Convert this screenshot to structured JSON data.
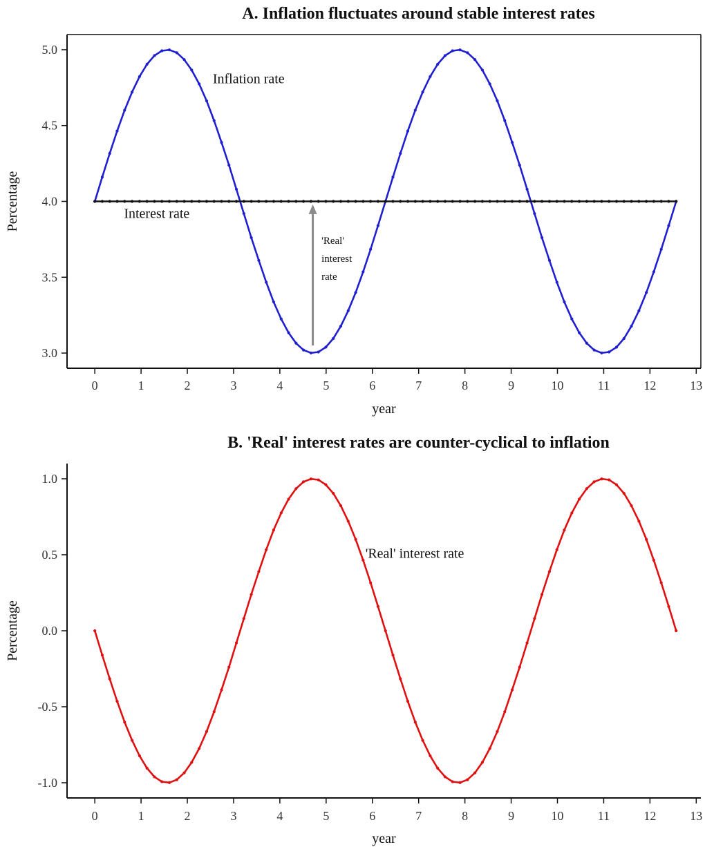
{
  "chart_data": [
    {
      "type": "line",
      "title": "A. Inflation fluctuates around stable interest rates",
      "xlabel": "year",
      "ylabel": "Percentage",
      "xlim": [
        -0.6,
        13.1
      ],
      "ylim": [
        2.9,
        5.1
      ],
      "xticks": [
        0,
        1,
        2,
        3,
        4,
        5,
        6,
        7,
        8,
        9,
        10,
        11,
        12,
        13
      ],
      "yticks": [
        3.0,
        3.5,
        4.0,
        4.5,
        5.0
      ],
      "ytick_labels": [
        "3.0",
        "3.5",
        "4.0",
        "4.5",
        "5.0"
      ],
      "grid": false,
      "series": [
        {
          "name": "Inflation rate",
          "color": "#1f1fd0",
          "marker": "dot",
          "x": [
            0,
            0.161,
            0.322,
            0.483,
            0.644,
            0.806,
            0.967,
            1.128,
            1.289,
            1.45,
            1.611,
            1.772,
            1.933,
            2.094,
            2.255,
            2.417,
            2.578,
            2.739,
            2.9,
            3.061,
            3.222,
            3.383,
            3.544,
            3.705,
            3.866,
            4.028,
            4.189,
            4.35,
            4.511,
            4.672,
            4.833,
            4.994,
            5.155,
            5.316,
            5.477,
            5.639,
            5.8,
            5.961,
            6.122,
            6.283,
            6.444,
            6.605,
            6.766,
            6.927,
            7.088,
            7.25,
            7.411,
            7.572,
            7.733,
            7.894,
            8.055,
            8.216,
            8.377,
            8.538,
            8.7,
            8.861,
            9.022,
            9.183,
            9.344,
            9.505,
            9.666,
            9.827,
            9.988,
            10.149,
            10.311,
            10.472,
            10.633,
            10.794,
            10.955,
            11.116,
            11.277,
            11.438,
            11.599,
            11.761,
            11.922,
            12.083,
            12.244,
            12.405,
            12.566
          ],
          "y": [
            4.0,
            4.16,
            4.316,
            4.464,
            4.601,
            4.721,
            4.823,
            4.904,
            4.961,
            4.993,
            4.999,
            4.98,
            4.935,
            4.866,
            4.775,
            4.663,
            4.533,
            4.389,
            4.239,
            4.08,
            3.92,
            3.761,
            3.611,
            3.467,
            3.337,
            3.225,
            3.134,
            3.065,
            3.02,
            3.001,
            3.007,
            3.039,
            3.096,
            3.177,
            3.279,
            3.399,
            3.536,
            3.684,
            3.84,
            4.0,
            4.16,
            4.316,
            4.464,
            4.601,
            4.721,
            4.823,
            4.904,
            4.961,
            4.993,
            4.999,
            4.98,
            4.935,
            4.866,
            4.775,
            4.663,
            4.533,
            4.389,
            4.239,
            4.08,
            3.92,
            3.761,
            3.611,
            3.467,
            3.337,
            3.225,
            3.134,
            3.065,
            3.02,
            3.001,
            3.007,
            3.039,
            3.096,
            3.177,
            3.279,
            3.399,
            3.536,
            3.684,
            3.84,
            4.0
          ]
        },
        {
          "name": "Interest rate",
          "color": "#111111",
          "marker": "dot",
          "x": [
            0,
            12.566
          ],
          "y": [
            4.0,
            4.0
          ],
          "points": 79
        }
      ],
      "annotations": [
        {
          "text": "Inflation rate",
          "x": 2.55,
          "y": 4.78
        },
        {
          "text": "Interest rate",
          "x": 0.63,
          "y": 3.89
        },
        {
          "text_lines": [
            "'Real'",
            "interest",
            "rate"
          ],
          "x": 4.9,
          "y": 3.72,
          "size": "small"
        }
      ],
      "arrow": {
        "from": [
          4.712,
          3.05
        ],
        "to": [
          4.712,
          3.98
        ],
        "color": "#8a8a8a"
      }
    },
    {
      "type": "line",
      "title": "B. 'Real' interest rates are counter-cyclical to inflation",
      "xlabel": "year",
      "ylabel": "Percentage",
      "xlim": [
        -0.6,
        13.1
      ],
      "ylim": [
        -1.1,
        1.1
      ],
      "xticks": [
        0,
        1,
        2,
        3,
        4,
        5,
        6,
        7,
        8,
        9,
        10,
        11,
        12,
        13
      ],
      "yticks": [
        -1.0,
        -0.5,
        0.0,
        0.5,
        1.0
      ],
      "ytick_labels": [
        "-1.0",
        "-0.5",
        "0.0",
        "0.5",
        "1.0"
      ],
      "grid": false,
      "series": [
        {
          "name": "'Real' interest rate",
          "color": "#e01010",
          "marker": "dot",
          "x": [
            0,
            0.161,
            0.322,
            0.483,
            0.644,
            0.806,
            0.967,
            1.128,
            1.289,
            1.45,
            1.611,
            1.772,
            1.933,
            2.094,
            2.255,
            2.417,
            2.578,
            2.739,
            2.9,
            3.061,
            3.222,
            3.383,
            3.544,
            3.705,
            3.866,
            4.028,
            4.189,
            4.35,
            4.511,
            4.672,
            4.833,
            4.994,
            5.155,
            5.316,
            5.477,
            5.639,
            5.8,
            5.961,
            6.122,
            6.283,
            6.444,
            6.605,
            6.766,
            6.927,
            7.088,
            7.25,
            7.411,
            7.572,
            7.733,
            7.894,
            8.055,
            8.216,
            8.377,
            8.538,
            8.7,
            8.861,
            9.022,
            9.183,
            9.344,
            9.505,
            9.666,
            9.827,
            9.988,
            10.149,
            10.311,
            10.472,
            10.633,
            10.794,
            10.955,
            11.116,
            11.277,
            11.438,
            11.599,
            11.761,
            11.922,
            12.083,
            12.244,
            12.405,
            12.566
          ],
          "y": [
            0.0,
            -0.16,
            -0.316,
            -0.464,
            -0.601,
            -0.721,
            -0.823,
            -0.904,
            -0.961,
            -0.993,
            -0.999,
            -0.98,
            -0.935,
            -0.866,
            -0.775,
            -0.663,
            -0.533,
            -0.389,
            -0.239,
            -0.08,
            0.08,
            0.239,
            0.389,
            0.533,
            0.663,
            0.775,
            0.866,
            0.935,
            0.98,
            0.999,
            0.993,
            0.961,
            0.904,
            0.823,
            0.721,
            0.601,
            0.464,
            0.316,
            0.16,
            0.0,
            -0.16,
            -0.316,
            -0.464,
            -0.601,
            -0.721,
            -0.823,
            -0.904,
            -0.961,
            -0.993,
            -0.999,
            -0.98,
            -0.935,
            -0.866,
            -0.775,
            -0.663,
            -0.533,
            -0.389,
            -0.239,
            -0.08,
            0.08,
            0.239,
            0.389,
            0.533,
            0.663,
            0.775,
            0.866,
            0.935,
            0.98,
            0.999,
            0.993,
            0.961,
            0.904,
            0.823,
            0.721,
            0.601,
            0.464,
            0.316,
            0.16,
            0.0
          ]
        }
      ],
      "annotations": [
        {
          "text": "'Real' interest rate",
          "x": 5.85,
          "y": 0.48
        }
      ]
    }
  ]
}
